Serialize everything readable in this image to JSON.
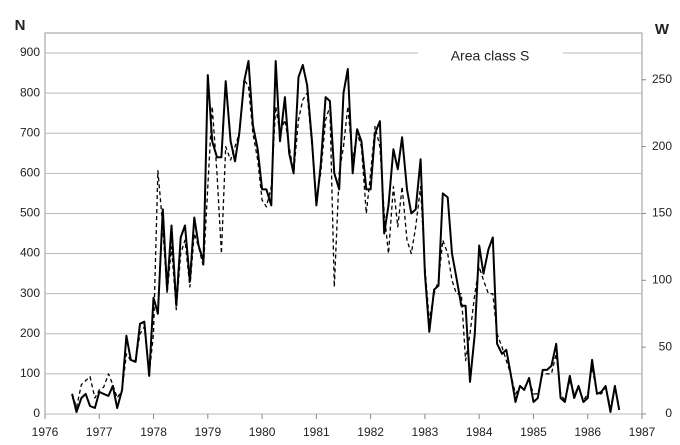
{
  "chart_data": {
    "type": "line",
    "ylabel": "N",
    "y2label": "W",
    "annotation": "Area class S",
    "x": [
      1976.5,
      1976.58,
      1976.67,
      1976.75,
      1976.83,
      1976.92,
      1977,
      1977.08,
      1977.17,
      1977.25,
      1977.33,
      1977.42,
      1977.5,
      1977.58,
      1977.67,
      1977.75,
      1977.83,
      1977.92,
      1978,
      1978.08,
      1978.17,
      1978.25,
      1978.33,
      1978.42,
      1978.5,
      1978.58,
      1978.67,
      1978.75,
      1978.83,
      1978.92,
      1979,
      1979.08,
      1979.17,
      1979.25,
      1979.33,
      1979.42,
      1979.5,
      1979.58,
      1979.67,
      1979.75,
      1979.83,
      1979.92,
      1980,
      1980.08,
      1980.17,
      1980.25,
      1980.33,
      1980.42,
      1980.5,
      1980.58,
      1980.67,
      1980.75,
      1980.83,
      1980.92,
      1981,
      1981.08,
      1981.17,
      1981.25,
      1981.33,
      1981.42,
      1981.5,
      1981.58,
      1981.67,
      1981.75,
      1981.83,
      1981.92,
      1982,
      1982.08,
      1982.17,
      1982.25,
      1982.33,
      1982.42,
      1982.5,
      1982.58,
      1982.67,
      1982.75,
      1982.83,
      1982.92,
      1983,
      1983.08,
      1983.17,
      1983.25,
      1983.33,
      1983.42,
      1983.5,
      1983.58,
      1983.67,
      1983.75,
      1983.83,
      1983.92,
      1984,
      1984.08,
      1984.17,
      1984.25,
      1984.33,
      1984.42,
      1984.5,
      1984.58,
      1984.67,
      1984.75,
      1984.83,
      1984.92,
      1985,
      1985.08,
      1985.17,
      1985.25,
      1985.33,
      1985.42,
      1985.5,
      1985.58,
      1985.67,
      1985.75,
      1985.83,
      1985.92,
      1986,
      1986.08,
      1986.17,
      1986.25,
      1986.33,
      1986.42,
      1986.5,
      1986.58
    ],
    "series": [
      {
        "name": "N",
        "color": "#000000",
        "dash": false,
        "values": [
          50,
          5,
          40,
          50,
          20,
          15,
          55,
          50,
          45,
          70,
          15,
          60,
          195,
          135,
          130,
          225,
          230,
          95,
          290,
          250,
          510,
          310,
          470,
          270,
          440,
          470,
          330,
          490,
          420,
          380,
          845,
          680,
          640,
          640,
          830,
          680,
          630,
          700,
          830,
          880,
          720,
          660,
          560,
          560,
          520,
          880,
          680,
          790,
          650,
          600,
          840,
          870,
          820,
          680,
          520,
          620,
          790,
          780,
          600,
          560,
          800,
          860,
          600,
          710,
          680,
          560,
          560,
          700,
          730,
          450,
          520,
          660,
          610,
          690,
          560,
          500,
          510,
          635,
          350,
          205,
          310,
          320,
          550,
          540,
          400,
          340,
          270,
          270,
          80,
          200,
          420,
          350,
          410,
          440,
          175,
          150,
          160,
          100,
          30,
          70,
          60,
          90,
          30,
          40,
          110,
          110,
          120,
          175,
          40,
          30,
          95,
          40,
          70,
          30,
          40,
          135,
          50,
          55,
          70,
          5,
          70,
          10
        ]
      },
      {
        "name": "W",
        "color": "#000000",
        "dash": true,
        "axis": "y2",
        "values": [
          15,
          5,
          22,
          25,
          28,
          12,
          18,
          20,
          30,
          22,
          12,
          18,
          45,
          40,
          40,
          60,
          65,
          30,
          60,
          182,
          140,
          90,
          125,
          78,
          120,
          130,
          95,
          135,
          125,
          110,
          170,
          230,
          180,
          120,
          200,
          190,
          200,
          210,
          250,
          245,
          210,
          190,
          160,
          155,
          170,
          230,
          210,
          220,
          200,
          180,
          220,
          235,
          240,
          200,
          160,
          180,
          220,
          230,
          95,
          180,
          200,
          230,
          190,
          210,
          200,
          150,
          180,
          215,
          200,
          150,
          120,
          170,
          140,
          170,
          130,
          120,
          140,
          170,
          110,
          70,
          90,
          100,
          130,
          120,
          100,
          90,
          90,
          40,
          60,
          90,
          110,
          100,
          90,
          90,
          60,
          50,
          40,
          30,
          15,
          20,
          20,
          25,
          15,
          15,
          30,
          30,
          30,
          45,
          15,
          10,
          25,
          15,
          20,
          10,
          15,
          35,
          15,
          15,
          20,
          5,
          20,
          5
        ]
      }
    ],
    "xlim": [
      1976,
      1987
    ],
    "xticks": [
      1976,
      1977,
      1978,
      1979,
      1980,
      1981,
      1982,
      1983,
      1984,
      1985,
      1986,
      1987
    ],
    "ylim": [
      0,
      900
    ],
    "yticks": [
      0,
      100,
      200,
      300,
      400,
      500,
      600,
      700,
      800,
      900
    ],
    "y2lim": [
      0,
      270
    ],
    "y2ticks": [
      0,
      50,
      100,
      150,
      200,
      250
    ],
    "grid": true
  }
}
